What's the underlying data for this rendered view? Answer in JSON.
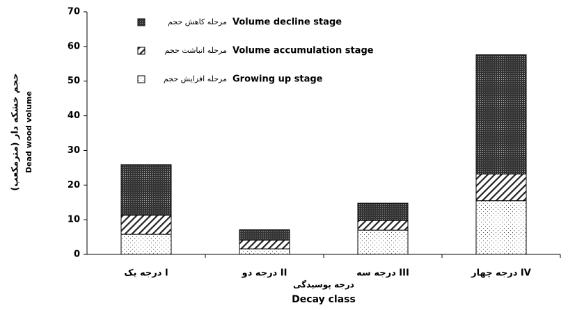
{
  "chart_data": {
    "type": "stacked_bar",
    "categories": [
      "درجه یک I",
      "درجه دو II",
      "درجه سه III",
      "درجه چهار IV"
    ],
    "series": [
      {
        "name": "Growing up stage",
        "name_fa": "مرحله افزایش حجم",
        "values": [
          5.8,
          1.6,
          7,
          15.5
        ]
      },
      {
        "name": "Volume accumulation stage",
        "name_fa": "مرحله انباشت حجم",
        "values": [
          5.5,
          2.5,
          2.8,
          7.7
        ]
      },
      {
        "name": "Volume decline stage",
        "name_fa": "مرحله کاهش حجم",
        "values": [
          14.6,
          3.0,
          5.0,
          34.4
        ]
      }
    ],
    "y_label": "حجم خشکه دار (مترمکعب)",
    "y_label_en": "Dead wood volume",
    "x_label": "درجه پوسیدگی",
    "x_label_en": "Decay class",
    "ylim": [
      0,
      70
    ],
    "yticks": [
      0,
      10,
      20,
      30,
      40,
      50,
      60,
      70
    ]
  }
}
